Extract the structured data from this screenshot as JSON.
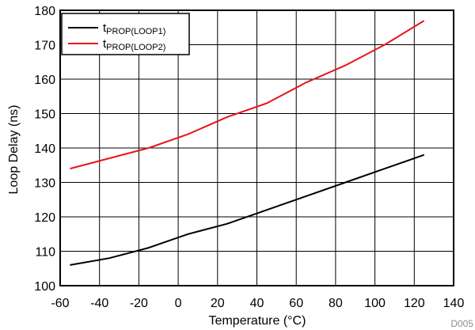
{
  "chart_data": {
    "type": "line",
    "xlabel": "Temperature (°C)",
    "ylabel": "Loop Delay (ns)",
    "xlim": [
      -60,
      140
    ],
    "ylim": [
      100,
      180
    ],
    "xticks": [
      -60,
      -40,
      -20,
      0,
      20,
      40,
      60,
      80,
      100,
      120,
      140
    ],
    "yticks": [
      100,
      110,
      120,
      130,
      140,
      150,
      160,
      170,
      180
    ],
    "grid": true,
    "legend_position": "top-left",
    "figure_id": "D005",
    "series": [
      {
        "name": "t",
        "name_subscript": "PROP(LOOP1)",
        "color": "#000000",
        "x": [
          -55,
          -35,
          -15,
          5,
          25,
          45,
          65,
          85,
          105,
          125
        ],
        "y": [
          106,
          108,
          111,
          115,
          118,
          122,
          126,
          130,
          134,
          138
        ]
      },
      {
        "name": "t",
        "name_subscript": "PROP(LOOP2)",
        "color": "#e8141c",
        "x": [
          -55,
          -35,
          -15,
          5,
          25,
          45,
          65,
          85,
          105,
          125
        ],
        "y": [
          134,
          137,
          140,
          144,
          149,
          153,
          159,
          164,
          170,
          177
        ]
      }
    ]
  }
}
